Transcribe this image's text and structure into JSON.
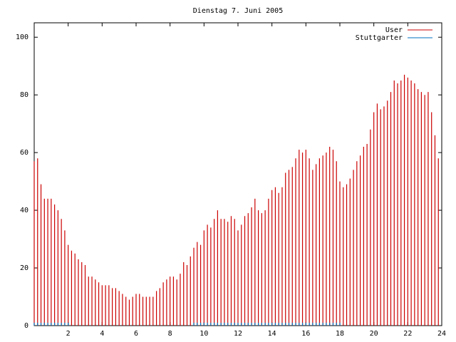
{
  "chart_data": {
    "type": "impulse",
    "title": "Dienstag 7. Juni 2005",
    "x": [
      0,
      0.2,
      0.4,
      0.6,
      0.8,
      1,
      1.2,
      1.4,
      1.6,
      1.8,
      2,
      2.2,
      2.4,
      2.6,
      2.8,
      3,
      3.2,
      3.4,
      3.6,
      3.8,
      4,
      4.2,
      4.4,
      4.6,
      4.8,
      5,
      5.2,
      5.4,
      5.6,
      5.8,
      6,
      6.2,
      6.4,
      6.6,
      6.8,
      7,
      7.2,
      7.4,
      7.6,
      7.8,
      8,
      8.2,
      8.4,
      8.6,
      8.8,
      9,
      9.2,
      9.4,
      9.6,
      9.8,
      10,
      10.2,
      10.4,
      10.6,
      10.8,
      11,
      11.2,
      11.4,
      11.6,
      11.8,
      12,
      12.2,
      12.4,
      12.6,
      12.8,
      13,
      13.2,
      13.4,
      13.6,
      13.8,
      14,
      14.2,
      14.4,
      14.6,
      14.8,
      15,
      15.2,
      15.4,
      15.6,
      15.8,
      16,
      16.2,
      16.4,
      16.6,
      16.8,
      17,
      17.2,
      17.4,
      17.6,
      17.8,
      18,
      18.2,
      18.4,
      18.6,
      18.8,
      19,
      19.2,
      19.4,
      19.6,
      19.8,
      20,
      20.2,
      20.4,
      20.6,
      20.8,
      21,
      21.2,
      21.4,
      21.6,
      21.8,
      22,
      22.2,
      22.4,
      22.6,
      22.8,
      23,
      23.2,
      23.4,
      23.6,
      23.8
    ],
    "series": [
      {
        "name": "User",
        "color": "#cc0000",
        "values": [
          57,
          58,
          49,
          44,
          44,
          44,
          42,
          40,
          37,
          33,
          28,
          26,
          25,
          23,
          22,
          21,
          17,
          17,
          16,
          15,
          14,
          14,
          14,
          13,
          13,
          12,
          11,
          10,
          9,
          10,
          11,
          11,
          10,
          10,
          10,
          10,
          12,
          13,
          15,
          16,
          17,
          17,
          16,
          18,
          22,
          21,
          24,
          27,
          29,
          28,
          33,
          35,
          34,
          37,
          40,
          37,
          37,
          36,
          38,
          37,
          33,
          35,
          38,
          39,
          41,
          44,
          40,
          39,
          40,
          44,
          47,
          48,
          46,
          48,
          53,
          54,
          55,
          58,
          61,
          60,
          61,
          58,
          54,
          56,
          58,
          59,
          60,
          62,
          61,
          57,
          50,
          48,
          49,
          51,
          54,
          57,
          59,
          62,
          63,
          68,
          74,
          77,
          75,
          76,
          78,
          81,
          85,
          84,
          85,
          87,
          86,
          85,
          84,
          82,
          81,
          80,
          81,
          74,
          66,
          58
        ]
      },
      {
        "name": "Stuttgarter",
        "color": "#0070c0",
        "values": [
          1,
          1,
          1,
          1,
          1,
          1,
          1,
          1,
          1,
          1,
          1,
          null,
          null,
          null,
          null,
          null,
          null,
          null,
          null,
          null,
          null,
          null,
          null,
          null,
          null,
          null,
          null,
          null,
          null,
          null,
          null,
          null,
          null,
          null,
          null,
          null,
          null,
          null,
          null,
          null,
          null,
          null,
          null,
          null,
          null,
          null,
          null,
          1,
          1,
          1,
          1,
          1,
          1,
          1,
          1,
          1,
          1,
          1,
          1,
          1,
          1,
          1,
          1,
          1,
          1,
          1,
          1,
          1,
          1,
          1,
          1,
          1,
          1,
          1,
          1,
          1,
          1,
          1,
          1,
          1,
          1,
          1,
          1,
          1,
          1,
          1,
          1,
          1,
          1,
          1,
          1,
          null,
          null,
          null,
          null,
          null,
          null,
          null,
          null,
          null,
          null,
          null,
          null,
          null,
          null,
          null,
          null,
          null,
          null,
          null,
          null,
          null,
          null,
          null,
          null,
          null,
          null,
          null,
          null,
          null
        ]
      }
    ],
    "xlim": [
      0,
      24
    ],
    "xticks": [
      2,
      4,
      6,
      8,
      10,
      12,
      14,
      16,
      18,
      20,
      22,
      24
    ],
    "ylim": [
      0,
      105
    ],
    "yticks": [
      0,
      20,
      40,
      60,
      80,
      100
    ],
    "legend": "top-right"
  }
}
